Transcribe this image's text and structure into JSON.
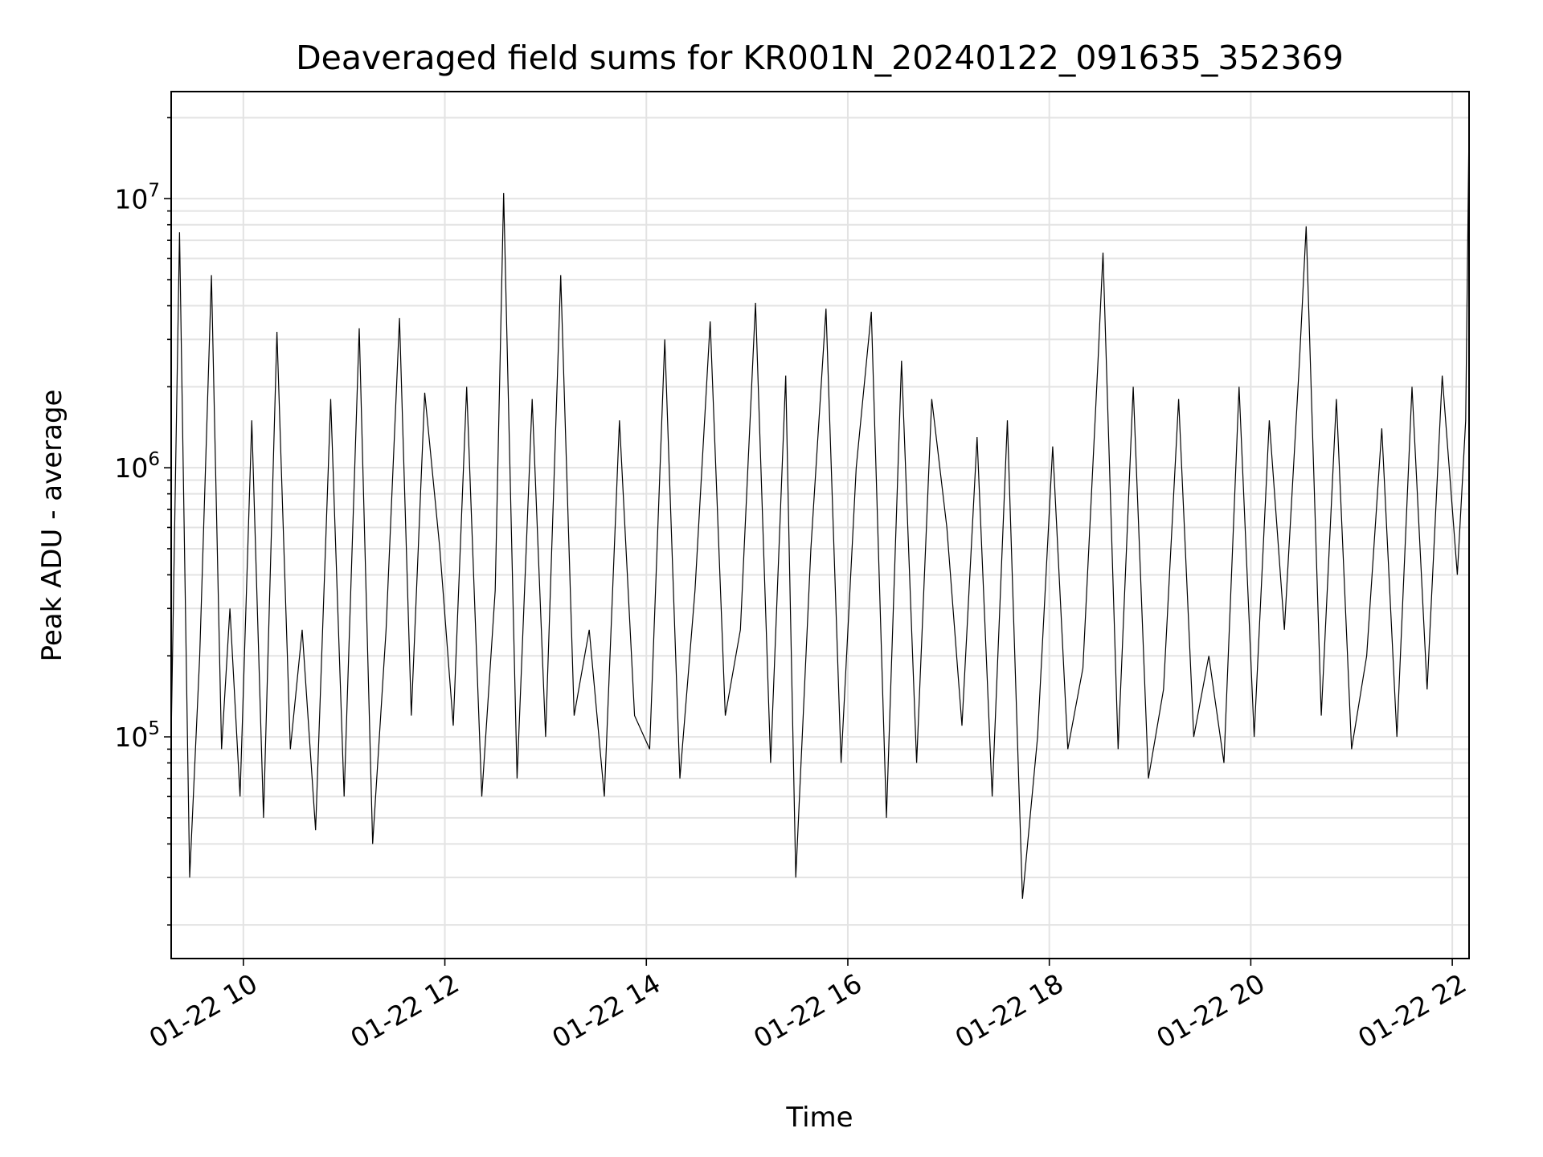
{
  "chart_data": {
    "type": "line",
    "title": "Deaveraged field sums for KR001N_20240122_091635_352369",
    "xlabel": "Time",
    "ylabel": "Peak ADU - average",
    "yscale": "log",
    "grid": true,
    "xlim": [
      "2024-01-22 09:17",
      "2024-01-22 22:10"
    ],
    "ylim": [
      15000,
      25000000
    ],
    "x_ticks": [
      {
        "label": "01-22 10",
        "value": "2024-01-22 10:00"
      },
      {
        "label": "01-22 12",
        "value": "2024-01-22 12:00"
      },
      {
        "label": "01-22 14",
        "value": "2024-01-22 14:00"
      },
      {
        "label": "01-22 16",
        "value": "2024-01-22 16:00"
      },
      {
        "label": "01-22 18",
        "value": "2024-01-22 18:00"
      },
      {
        "label": "01-22 20",
        "value": "2024-01-22 20:00"
      },
      {
        "label": "01-22 22",
        "value": "2024-01-22 22:00"
      }
    ],
    "y_ticks": [
      {
        "base": "10",
        "exp": "5",
        "value": 100000
      },
      {
        "base": "10",
        "exp": "6",
        "value": 1000000
      },
      {
        "base": "10",
        "exp": "7",
        "value": 10000000
      }
    ],
    "series": [
      {
        "color": "#000000",
        "x": [
          "2024-01-22 09:17",
          "2024-01-22 09:22",
          "2024-01-22 09:28",
          "2024-01-22 09:34",
          "2024-01-22 09:41",
          "2024-01-22 09:47",
          "2024-01-22 09:52",
          "2024-01-22 09:58",
          "2024-01-22 10:05",
          "2024-01-22 10:12",
          "2024-01-22 10:20",
          "2024-01-22 10:28",
          "2024-01-22 10:35",
          "2024-01-22 10:43",
          "2024-01-22 10:52",
          "2024-01-22 11:00",
          "2024-01-22 11:09",
          "2024-01-22 11:17",
          "2024-01-22 11:25",
          "2024-01-22 11:33",
          "2024-01-22 11:40",
          "2024-01-22 11:48",
          "2024-01-22 11:57",
          "2024-01-22 12:05",
          "2024-01-22 12:13",
          "2024-01-22 12:22",
          "2024-01-22 12:30",
          "2024-01-22 12:35",
          "2024-01-22 12:43",
          "2024-01-22 12:52",
          "2024-01-22 13:00",
          "2024-01-22 13:09",
          "2024-01-22 13:17",
          "2024-01-22 13:26",
          "2024-01-22 13:35",
          "2024-01-22 13:44",
          "2024-01-22 13:53",
          "2024-01-22 14:02",
          "2024-01-22 14:11",
          "2024-01-22 14:20",
          "2024-01-22 14:29",
          "2024-01-22 14:38",
          "2024-01-22 14:47",
          "2024-01-22 14:56",
          "2024-01-22 15:05",
          "2024-01-22 15:14",
          "2024-01-22 15:23",
          "2024-01-22 15:29",
          "2024-01-22 15:38",
          "2024-01-22 15:47",
          "2024-01-22 15:56",
          "2024-01-22 16:05",
          "2024-01-22 16:14",
          "2024-01-22 16:23",
          "2024-01-22 16:32",
          "2024-01-22 16:41",
          "2024-01-22 16:50",
          "2024-01-22 16:59",
          "2024-01-22 17:08",
          "2024-01-22 17:17",
          "2024-01-22 17:26",
          "2024-01-22 17:35",
          "2024-01-22 17:44",
          "2024-01-22 17:53",
          "2024-01-22 18:02",
          "2024-01-22 18:11",
          "2024-01-22 18:20",
          "2024-01-22 18:29",
          "2024-01-22 18:32",
          "2024-01-22 18:41",
          "2024-01-22 18:50",
          "2024-01-22 18:59",
          "2024-01-22 19:08",
          "2024-01-22 19:17",
          "2024-01-22 19:26",
          "2024-01-22 19:35",
          "2024-01-22 19:44",
          "2024-01-22 19:53",
          "2024-01-22 20:02",
          "2024-01-22 20:11",
          "2024-01-22 20:20",
          "2024-01-22 20:29",
          "2024-01-22 20:33",
          "2024-01-22 20:42",
          "2024-01-22 20:51",
          "2024-01-22 21:00",
          "2024-01-22 21:09",
          "2024-01-22 21:18",
          "2024-01-22 21:27",
          "2024-01-22 21:36",
          "2024-01-22 21:45",
          "2024-01-22 21:54",
          "2024-01-22 22:03",
          "2024-01-22 22:08",
          "2024-01-22 22:10"
        ],
        "values": [
          100000,
          7500000,
          30000,
          200000,
          5200000,
          90000,
          300000,
          60000,
          1500000,
          50000,
          3200000,
          90000,
          250000,
          45000,
          1800000,
          60000,
          3300000,
          40000,
          250000,
          3600000,
          120000,
          1900000,
          500000,
          110000,
          2000000,
          60000,
          350000,
          10500000,
          70000,
          1800000,
          100000,
          5200000,
          120000,
          250000,
          60000,
          1500000,
          120000,
          90000,
          3000000,
          70000,
          350000,
          3500000,
          120000,
          250000,
          4100000,
          80000,
          2200000,
          30000,
          500000,
          3900000,
          80000,
          1000000,
          3800000,
          50000,
          2500000,
          80000,
          1800000,
          600000,
          110000,
          1300000,
          60000,
          1500000,
          25000,
          100000,
          1200000,
          90000,
          180000,
          2500000,
          6300000,
          90000,
          2000000,
          70000,
          150000,
          1800000,
          100000,
          200000,
          80000,
          2000000,
          100000,
          1500000,
          250000,
          2500000,
          7900000,
          120000,
          1800000,
          90000,
          200000,
          1400000,
          100000,
          2000000,
          150000,
          2200000,
          400000,
          1500000,
          19000000
        ]
      }
    ]
  }
}
